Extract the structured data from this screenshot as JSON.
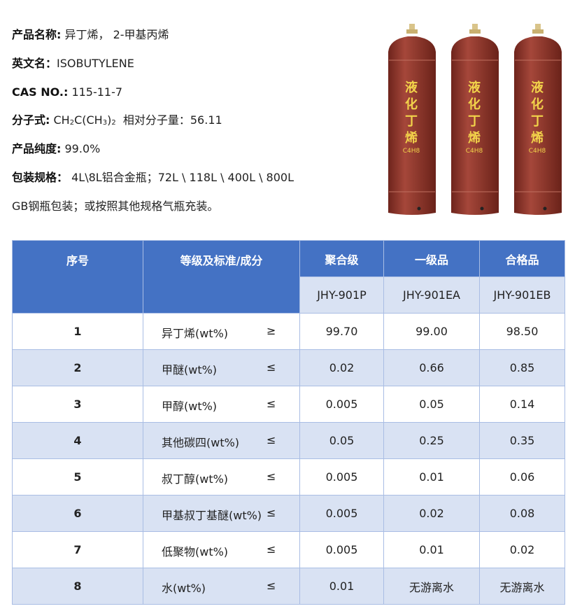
{
  "info": {
    "name_label": "产品名称:",
    "name": "异丁烯， 2-甲基丙烯",
    "en_label": "英文名：",
    "en": "ISOBUTYLENE",
    "cas_label": "CAS NO.:",
    "cas": "115-11-7",
    "formula_label": "分子式:",
    "formula_a": "CH",
    "formula_b": "2",
    "formula_c": "C(CH",
    "formula_d": "3",
    "formula_e": ")",
    "formula_f": "2",
    "mw": "相对分子量：56.11",
    "purity_label": "产品纯度:",
    "purity": "99.0%",
    "pack_label": "包装规格：",
    "pack": "4L\\8L铝合金瓶；72L \\ 118L \\ 400L \\ 800L",
    "pack2": "GB钢瓶包装；或按照其他规格气瓶充装。"
  },
  "cylinder": {
    "chars": [
      "液",
      "化",
      "丁",
      "烯"
    ],
    "formula": "C4H8",
    "color": "#8c3328"
  },
  "table": {
    "headers": [
      "序号",
      "等级及标准/成分",
      "聚合级",
      "一级品",
      "合格品"
    ],
    "codes": [
      "JHY-901P",
      "JHY-901EA",
      "JHY-901EB"
    ],
    "rows": [
      {
        "idx": "1",
        "name": "异丁烯(wt%)",
        "sym": "≥",
        "v": [
          "99.70",
          "99.00",
          "98.50"
        ]
      },
      {
        "idx": "2",
        "name": "甲醚(wt%)",
        "sym": "≤",
        "v": [
          "0.02",
          "0.66",
          "0.85"
        ]
      },
      {
        "idx": "3",
        "name": "甲醇(wt%)",
        "sym": "≤",
        "v": [
          "0.005",
          "0.05",
          "0.14"
        ]
      },
      {
        "idx": "4",
        "name": "其他碳四(wt%)",
        "sym": "≤",
        "v": [
          "0.05",
          "0.25",
          "0.35"
        ]
      },
      {
        "idx": "5",
        "name": "叔丁醇(wt%)",
        "sym": "≤",
        "v": [
          "0.005",
          "0.01",
          "0.06"
        ]
      },
      {
        "idx": "6",
        "name": "甲基叔丁基醚(wt%)",
        "sym": "≤",
        "v": [
          "0.005",
          "0.02",
          "0.08"
        ]
      },
      {
        "idx": "7",
        "name": "低聚物(wt%)",
        "sym": "≤",
        "v": [
          "0.005",
          "0.01",
          "0.02"
        ]
      },
      {
        "idx": "8",
        "name": "水(wt%)",
        "sym": "≤",
        "v": [
          "0.01",
          "无游离水",
          "无游离水"
        ]
      }
    ]
  },
  "colors": {
    "header": "#4472c4",
    "alt_row": "#d9e2f3"
  }
}
